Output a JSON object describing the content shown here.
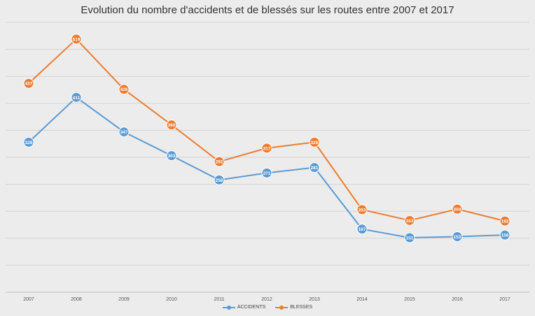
{
  "chart_data": {
    "type": "line",
    "title": "Evolution du nombre d'accidents et de blessés sur les routes entre 2007 et 2017",
    "categories": [
      "2007",
      "2008",
      "2009",
      "2010",
      "2011",
      "2012",
      "2013",
      "2014",
      "2015",
      "2016",
      "2017"
    ],
    "series": [
      {
        "name": "ACCIDENTS",
        "color": "#5b9bd5",
        "values": [
          328,
          411,
          347,
          303,
          258,
          271,
          281,
          167,
          151,
          153,
          156
        ]
      },
      {
        "name": "BLESSES",
        "color": "#ed7d31",
        "values": [
          437,
          519,
          426,
          360,
          292,
          317,
          328,
          203,
          183,
          204,
          182
        ]
      }
    ],
    "ylim": [
      100,
      550
    ],
    "grid": true,
    "legend_position": "bottom",
    "data_labels": true
  }
}
